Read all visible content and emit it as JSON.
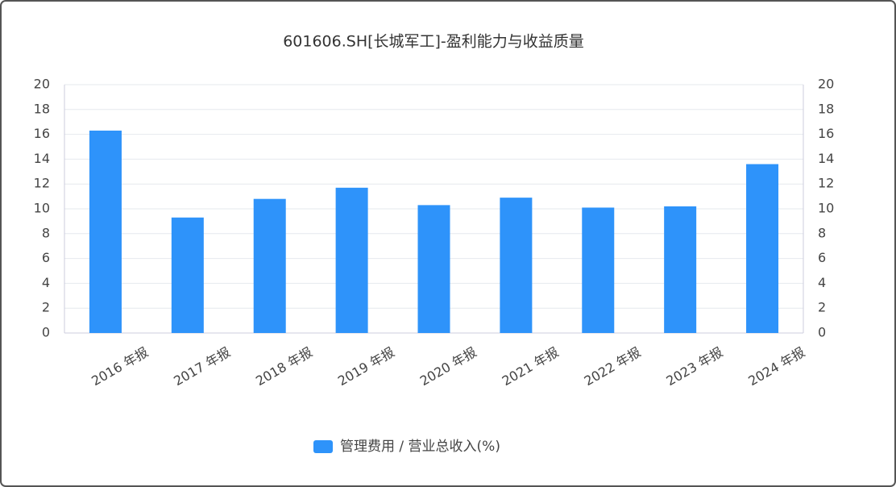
{
  "chart_data": {
    "type": "bar",
    "title": "601606.SH[长城军工]-盈利能力与收益质量",
    "categories": [
      "2016 年报",
      "2017 年报",
      "2018 年报",
      "2019 年报",
      "2020 年报",
      "2021 年报",
      "2022 年报",
      "2023 年报",
      "2024 年报"
    ],
    "series": [
      {
        "name": "管理费用 / 营业总收入(%)",
        "color": "#2e93fa",
        "values": [
          16.3,
          9.3,
          10.8,
          11.7,
          10.3,
          10.9,
          10.1,
          10.2,
          13.6
        ]
      }
    ],
    "ylim": [
      0,
      20
    ],
    "yticks": [
      0,
      2,
      4,
      6,
      8,
      10,
      12,
      14,
      16,
      18,
      20
    ],
    "y2lim": [
      0,
      20
    ],
    "y2ticks": [
      0,
      2,
      4,
      6,
      8,
      10,
      12,
      14,
      16,
      18,
      20
    ],
    "grid": true,
    "legend": "bottom"
  }
}
